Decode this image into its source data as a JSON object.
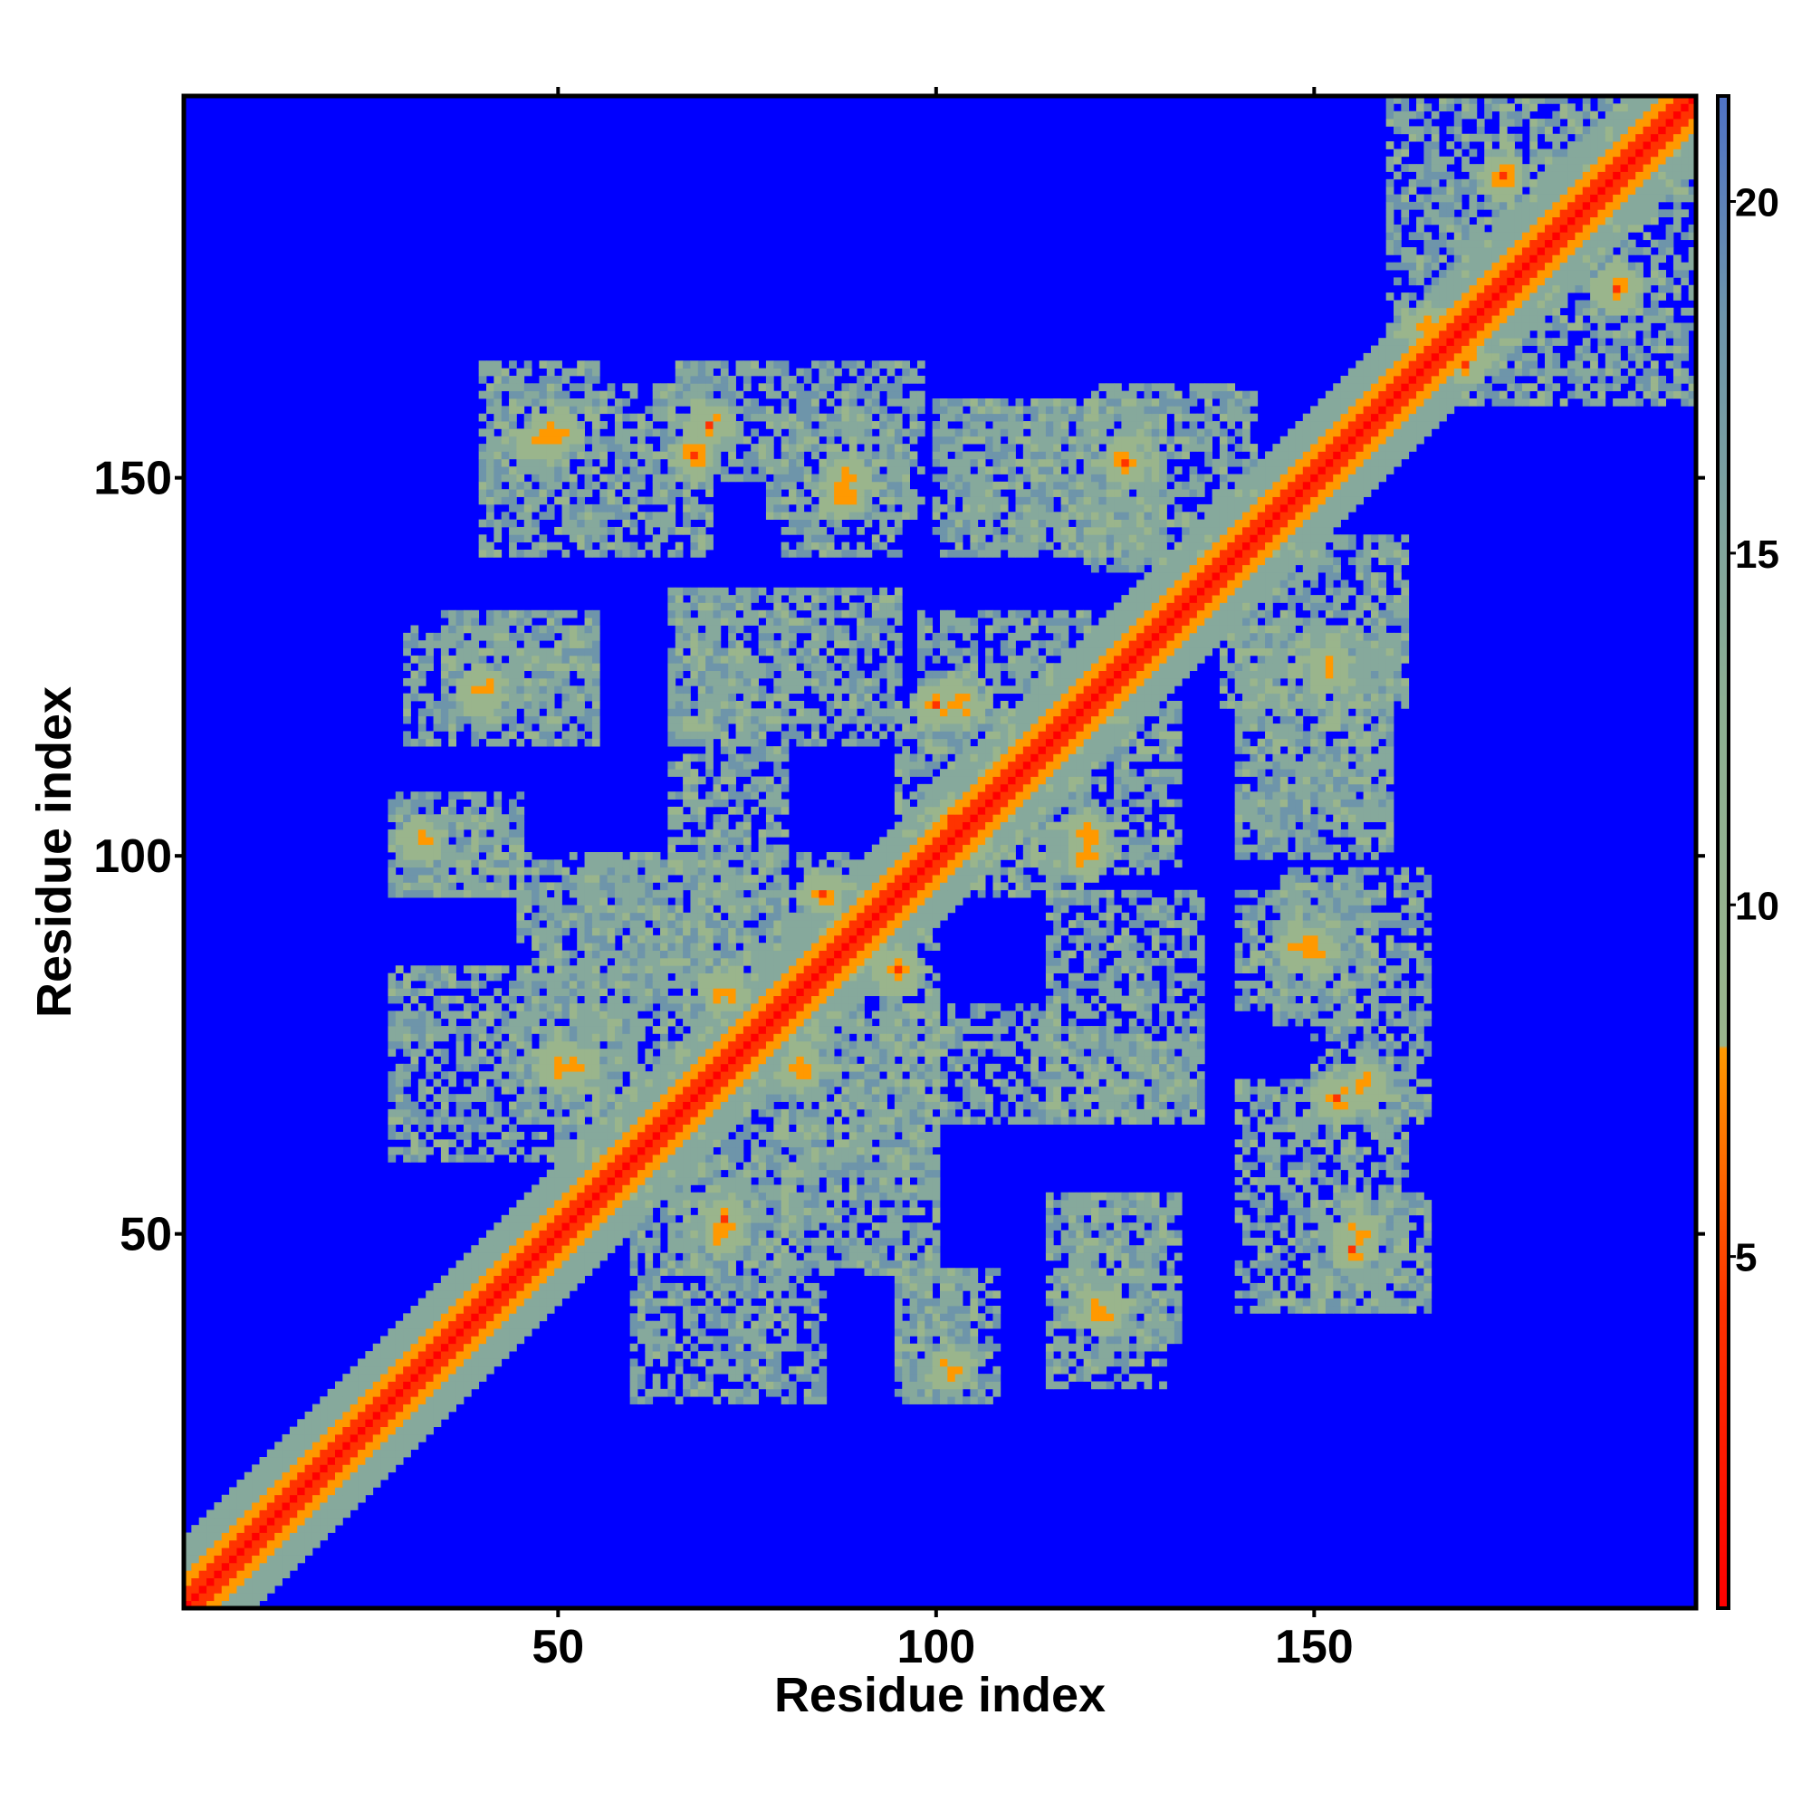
{
  "chart_data": {
    "type": "heatmap",
    "title": "",
    "xlabel": "Residue index",
    "ylabel": "Residue index",
    "n_residues": 200,
    "xlim": [
      1,
      200
    ],
    "ylim": [
      1,
      200
    ],
    "x_ticks": [
      50,
      100,
      150
    ],
    "y_ticks": [
      50,
      100,
      150
    ],
    "colorbar": {
      "ticks": [
        5,
        10,
        15,
        20
      ],
      "range": [
        0,
        21.5
      ],
      "cutoff": 8,
      "colors": {
        "low": "#ff0000",
        "mid": "#ff9900",
        "near": "#9ab58c",
        "far": "#5c86b4",
        "background": "#0000ff"
      }
    },
    "contact_regions": [
      {
        "x": [
          40,
          70
        ],
        "y": [
          140,
          162
        ],
        "description_key": "block"
      },
      {
        "x": [
          78,
          98
        ],
        "y": [
          145,
          165
        ]
      },
      {
        "x": [
          100,
          130
        ],
        "y": [
          140,
          160
        ]
      },
      {
        "x": [
          120,
          142
        ],
        "y": [
          138,
          162
        ]
      },
      {
        "x": [
          30,
          55
        ],
        "y": [
          115,
          130
        ]
      },
      {
        "x": [
          65,
          75
        ],
        "y": [
          115,
          135
        ]
      },
      {
        "x": [
          80,
          95
        ],
        "y": [
          115,
          135
        ]
      },
      {
        "x": [
          98,
          120
        ],
        "y": [
          112,
          132
        ]
      },
      {
        "x": [
          140,
          160
        ],
        "y": [
          105,
          130
        ]
      },
      {
        "x": [
          28,
          45
        ],
        "y": [
          95,
          105
        ]
      },
      {
        "x": [
          45,
          90
        ],
        "y": [
          80,
          100
        ]
      },
      {
        "x": [
          100,
          120
        ],
        "y": [
          95,
          110
        ]
      },
      {
        "x": [
          140,
          158
        ],
        "y": [
          80,
          95
        ]
      },
      {
        "x": [
          28,
          55
        ],
        "y": [
          60,
          85
        ]
      },
      {
        "x": [
          55,
          100
        ],
        "y": [
          55,
          80
        ]
      },
      {
        "x": [
          100,
          135
        ],
        "y": [
          65,
          80
        ]
      },
      {
        "x": [
          150,
          165
        ],
        "y": [
          65,
          78
        ]
      },
      {
        "x": [
          65,
          80
        ],
        "y": [
          45,
          60
        ]
      },
      {
        "x": [
          95,
          108
        ],
        "y": [
          28,
          45
        ]
      },
      {
        "x": [
          118,
          132
        ],
        "y": [
          35,
          55
        ]
      },
      {
        "x": [
          150,
          165
        ],
        "y": [
          40,
          55
        ]
      },
      {
        "x": [
          160,
          200
        ],
        "y": [
          160,
          200
        ]
      }
    ],
    "hotspots": [
      [
        48,
        155
      ],
      [
        68,
        153
      ],
      [
        88,
        148
      ],
      [
        125,
        152
      ],
      [
        40,
        122
      ],
      [
        100,
        120
      ],
      [
        102,
        105
      ],
      [
        120,
        103
      ],
      [
        85,
        95
      ],
      [
        90,
        88
      ],
      [
        82,
        72
      ],
      [
        50,
        72
      ],
      [
        72,
        52
      ],
      [
        122,
        40
      ],
      [
        102,
        32
      ],
      [
        150,
        88
      ],
      [
        157,
        70
      ],
      [
        156,
        50
      ],
      [
        180,
        180
      ],
      [
        175,
        190
      ],
      [
        190,
        175
      ],
      [
        165,
        170
      ]
    ]
  }
}
